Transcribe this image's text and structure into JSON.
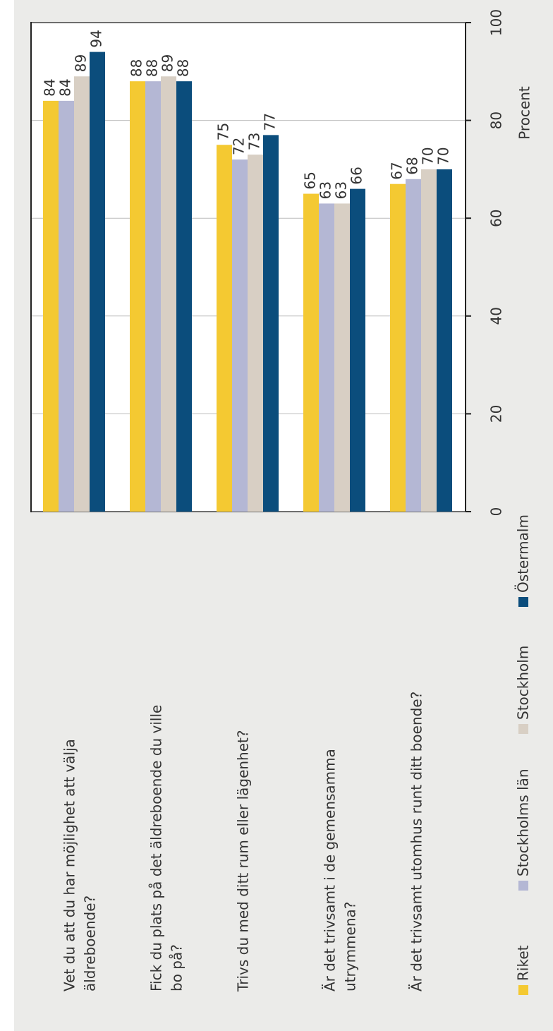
{
  "chart_data": {
    "type": "bar",
    "categories": [
      [
        "Vet du att du har möjlighet att välja",
        "äldreboende?"
      ],
      [
        "Fick du plats på det äldreboende du ville",
        "bo på?"
      ],
      [
        "Trivs du med ditt  rum eller lägenhet?"
      ],
      [
        "Är det trivsamt i de gemensamma",
        "utrymmena?"
      ],
      [
        "Är det trivsamt utomhus runt ditt boende?"
      ]
    ],
    "series": [
      {
        "name": "Riket",
        "color": "#f4c932",
        "values": [
          84,
          88,
          75,
          65,
          67
        ]
      },
      {
        "name": "Stockholms län",
        "color": "#b4b7d4",
        "values": [
          84,
          88,
          72,
          63,
          68
        ]
      },
      {
        "name": "Stockholm",
        "color": "#d8cfc4",
        "values": [
          89,
          89,
          73,
          63,
          70
        ]
      },
      {
        "name": "Östermalm",
        "color": "#0b4d7c",
        "values": [
          94,
          88,
          77,
          66,
          70
        ]
      }
    ],
    "ylabel": "Procent",
    "ylim": [
      0,
      100
    ],
    "yticks": [
      0,
      20,
      40,
      60,
      80,
      100
    ],
    "grid": true
  }
}
